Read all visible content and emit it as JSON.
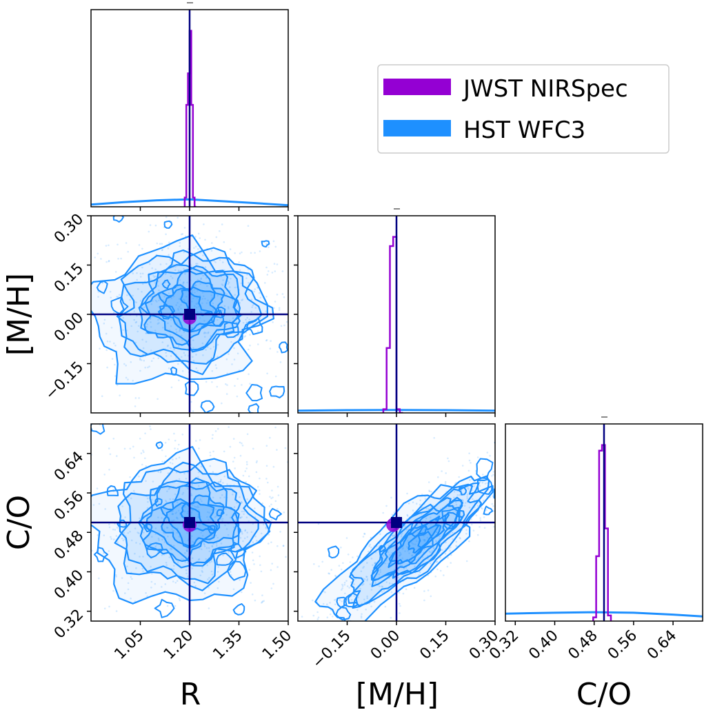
{
  "colors": {
    "jwst": "#9400D3",
    "hst": "#1E90FF",
    "truth": "#000080",
    "frame": "#000000"
  },
  "chart_data": {
    "type": "corner",
    "parameters": [
      "R",
      "[M/H]",
      "C/O"
    ],
    "truths": {
      "R": 1.2,
      "[M/H]": 0.0,
      "C/O": 0.5
    },
    "axes": {
      "R": {
        "lim": [
          0.9,
          1.5
        ],
        "ticks": [
          1.05,
          1.2,
          1.35,
          1.5
        ],
        "tick_labels": [
          "1.05",
          "1.20",
          "1.35",
          "1.50"
        ]
      },
      "[M/H]": {
        "lim": [
          -0.3,
          0.3
        ],
        "ticks": [
          -0.15,
          0.0,
          0.15,
          0.3
        ],
        "tick_labels": [
          "−0.15",
          "0.00",
          "0.15",
          "0.30"
        ]
      },
      "C/O": {
        "lim": [
          0.3,
          0.7
        ],
        "ticks": [
          0.32,
          0.4,
          0.48,
          0.56,
          0.64
        ],
        "tick_labels": [
          "0.32",
          "0.40",
          "0.48",
          "0.56",
          "0.64"
        ]
      }
    },
    "legend": {
      "position": "top-right",
      "entries": [
        {
          "label": "JWST NIRSpec",
          "color": "#9400D3"
        },
        {
          "label": "HST WFC3",
          "color": "#1E90FF"
        }
      ]
    },
    "posterior_means": {
      "JWST NIRSpec": {
        "R": 1.2,
        "[M/H]": -0.01,
        "C/O": 0.495
      },
      "HST WFC3": {
        "R": 1.2,
        "[M/H]": 0.0,
        "C/O": 0.5
      }
    },
    "hist_jwst": {
      "R": {
        "edges": [
          1.185,
          1.19,
          1.195,
          1.2,
          1.205,
          1.21,
          1.215,
          1.22
        ],
        "heights": [
          0.05,
          0.55,
          0.72,
          0.95,
          0.55,
          0.05,
          0.0
        ]
      },
      "[M/H]": {
        "edges": [
          -0.04,
          -0.03,
          -0.02,
          -0.01,
          0.0,
          0.01,
          0.02
        ],
        "heights": [
          0.02,
          0.35,
          0.9,
          0.95,
          0.02,
          0.0
        ]
      },
      "C/O": {
        "edges": [
          0.478,
          0.484,
          0.49,
          0.496,
          0.502,
          0.508,
          0.514
        ],
        "heights": [
          0.02,
          0.35,
          0.92,
          0.95,
          0.5,
          0.03
        ]
      }
    },
    "hist_hst": {
      "R": {
        "x": [
          0.9,
          1.0,
          1.1,
          1.2,
          1.3,
          1.4,
          1.5
        ],
        "heights": [
          0.012,
          0.025,
          0.035,
          0.04,
          0.03,
          0.02,
          0.008
        ]
      },
      "[M/H]": {
        "x": [
          -0.3,
          -0.15,
          0.0,
          0.15,
          0.3
        ],
        "heights": [
          0.012,
          0.015,
          0.016,
          0.015,
          0.012
        ]
      },
      "C/O": {
        "x": [
          0.3,
          0.4,
          0.48,
          0.56,
          0.64,
          0.7
        ],
        "heights": [
          0.04,
          0.045,
          0.048,
          0.045,
          0.035,
          0.025
        ]
      }
    }
  }
}
